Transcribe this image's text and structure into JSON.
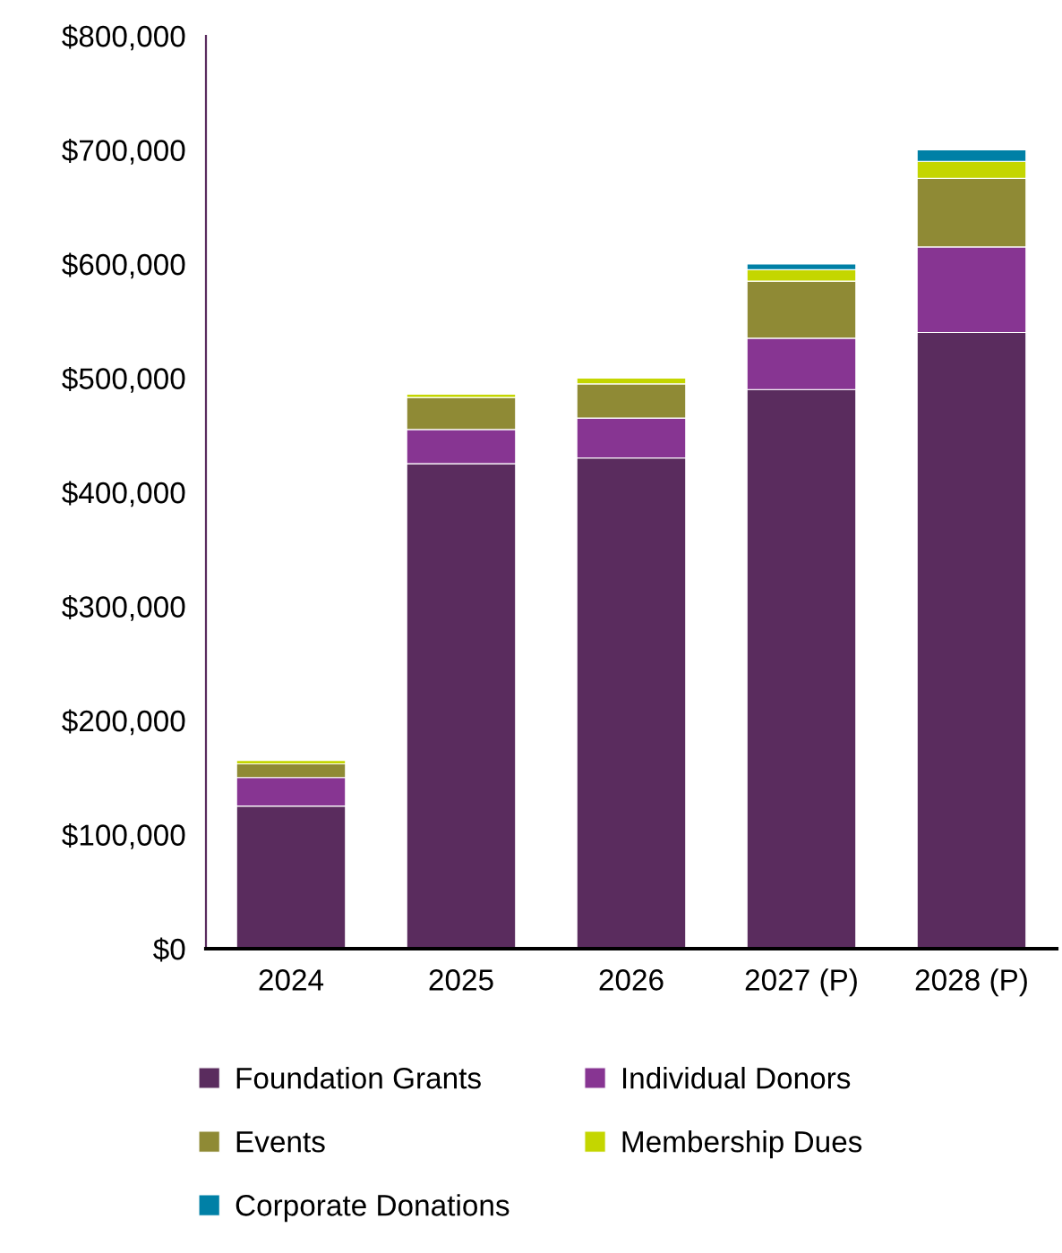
{
  "chart_data": {
    "type": "bar",
    "stacked": true,
    "categories": [
      "2024",
      "2025",
      "2026",
      "2027 (P)",
      "2028 (P)"
    ],
    "series": [
      {
        "name": "Foundation Grants",
        "color": "#5a2c5e",
        "values": [
          125000,
          425000,
          430000,
          490000,
          540000
        ]
      },
      {
        "name": "Individual Donors",
        "color": "#873592",
        "values": [
          25000,
          30000,
          35000,
          45000,
          75000
        ]
      },
      {
        "name": "Events",
        "color": "#8f8a35",
        "values": [
          12000,
          28000,
          30000,
          50000,
          60000
        ]
      },
      {
        "name": "Membership Dues",
        "color": "#c4d600",
        "values": [
          3000,
          3000,
          5000,
          10000,
          15000
        ]
      },
      {
        "name": "Corporate Donations",
        "color": "#0080a6",
        "values": [
          null,
          null,
          null,
          5000,
          10000
        ]
      }
    ],
    "ylim": [
      0,
      800000
    ],
    "yticks": [
      {
        "value": 0,
        "label": "$0"
      },
      {
        "value": 100000,
        "label": "$100,000"
      },
      {
        "value": 200000,
        "label": "$200,000"
      },
      {
        "value": 300000,
        "label": "$300,000"
      },
      {
        "value": 400000,
        "label": "$400,000"
      },
      {
        "value": 500000,
        "label": "$500,000"
      },
      {
        "value": 600000,
        "label": "$600,000"
      },
      {
        "value": 700000,
        "label": "$700,000"
      },
      {
        "value": 800000,
        "label": "$800,000"
      }
    ],
    "grid": false,
    "legend": "bottom"
  }
}
